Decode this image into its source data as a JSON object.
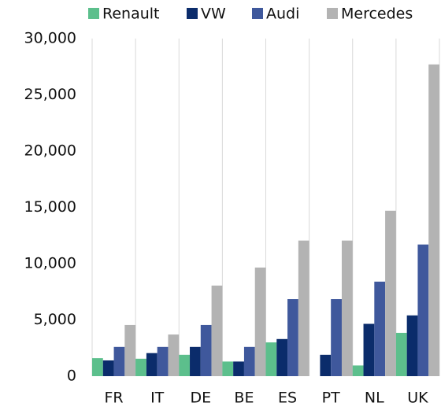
{
  "chart_data": {
    "type": "bar",
    "categories": [
      "FR",
      "IT",
      "DE",
      "BE",
      "ES",
      "PT",
      "NL",
      "UK"
    ],
    "series": [
      {
        "name": "Renault",
        "color": "#5cbf8c",
        "values": [
          1600,
          1550,
          1900,
          1300,
          3000,
          0,
          950,
          3850
        ]
      },
      {
        "name": "VW",
        "color": "#0b2c6b",
        "values": [
          1400,
          2050,
          2600,
          1300,
          3300,
          1900,
          4650,
          5400
        ]
      },
      {
        "name": "Audi",
        "color": "#3f589c",
        "values": [
          2600,
          2600,
          4550,
          2600,
          6850,
          6850,
          8400,
          11700
        ]
      },
      {
        "name": "Mercedes",
        "color": "#b3b3b3",
        "values": [
          4550,
          3700,
          8050,
          9650,
          12050,
          12050,
          14700,
          27700
        ]
      }
    ],
    "ylim": [
      0,
      30000
    ],
    "yticks": [
      0,
      {
        "value": 5000,
        "label": "5,000"
      },
      {
        "value": 10000,
        "label": "10,000"
      },
      {
        "value": 15000,
        "label": "15,000"
      },
      {
        "value": 20000,
        "label": "20,000"
      },
      {
        "value": 25000,
        "label": "25,000"
      },
      {
        "value": 30000,
        "label": "30,000"
      }
    ],
    "grid": true
  }
}
